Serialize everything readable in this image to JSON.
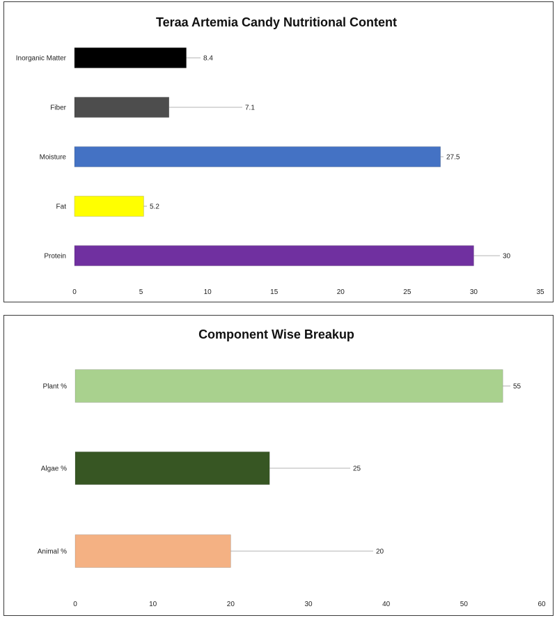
{
  "chart_data": [
    {
      "type": "bar",
      "orientation": "horizontal",
      "title": "Teraa Artemia Candy Nutritional Content",
      "xlabel": "",
      "ylabel": "",
      "categories": [
        "Inorganic Matter",
        "Fiber",
        "Moisture",
        "Fat",
        "Protein"
      ],
      "values": [
        8.4,
        7.1,
        27.5,
        5.2,
        30
      ],
      "value_labels": [
        "8.4",
        "7.1",
        "27.5",
        "5.2",
        "30"
      ],
      "colors": [
        "#000000",
        "#4d4d4d",
        "#4472c4",
        "#ffff00",
        "#7030a0"
      ],
      "xlim": [
        0,
        35
      ],
      "xticks": [
        "0",
        "5",
        "10",
        "15",
        "20",
        "25",
        "30",
        "35"
      ],
      "grid": false,
      "legend": "none"
    },
    {
      "type": "bar",
      "orientation": "horizontal",
      "title": "Component Wise Breakup",
      "xlabel": "",
      "ylabel": "",
      "categories": [
        "Plant %",
        "Algae %",
        "Animal %"
      ],
      "values": [
        55,
        25,
        20
      ],
      "value_labels": [
        "55",
        "25",
        "20"
      ],
      "colors": [
        "#a9d18e",
        "#375623",
        "#f4b183"
      ],
      "xlim": [
        0,
        60
      ],
      "xticks": [
        "0",
        "10",
        "20",
        "30",
        "40",
        "50",
        "60"
      ],
      "grid": false,
      "legend": "none"
    }
  ]
}
